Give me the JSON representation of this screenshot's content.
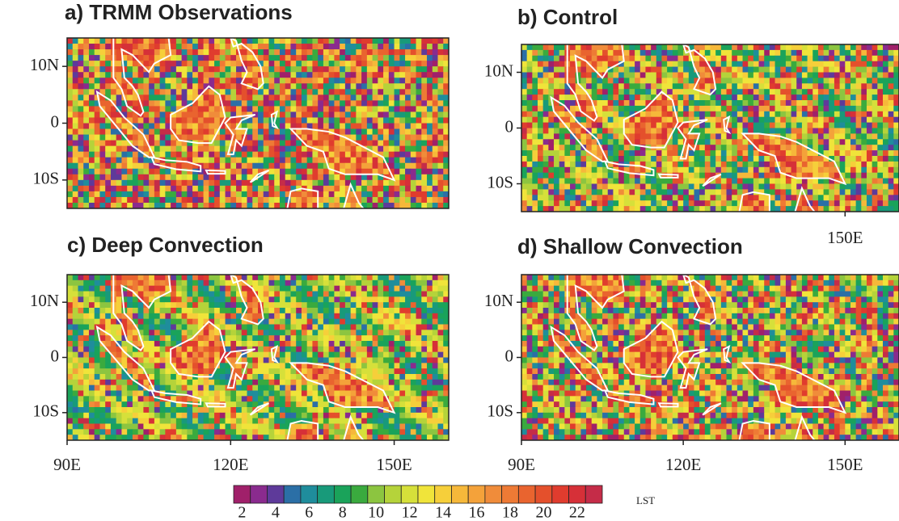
{
  "chart_data": [
    {
      "type": "map",
      "title": "a) TRMM Observations",
      "xlim": [
        90,
        160
      ],
      "ylim": [
        -15,
        15
      ],
      "xticks": [],
      "yticks": [
        {
          "value": 10,
          "label": "10N"
        },
        0,
        {
          "value": -10,
          "label": "10S"
        }
      ]
    },
    {
      "type": "map",
      "title": "b) Control",
      "xlim": [
        90,
        160
      ],
      "ylim": [
        -15,
        15
      ],
      "xticks": [
        {
          "value": 150,
          "label": "150E"
        }
      ],
      "yticks": [
        {
          "value": 10,
          "label": "10N"
        },
        0,
        {
          "value": -10,
          "label": "10S"
        }
      ]
    },
    {
      "type": "map",
      "title": "c) Deep Convection",
      "xlim": [
        90,
        160
      ],
      "ylim": [
        -15,
        15
      ],
      "xticks": [
        {
          "value": 90,
          "label": "90E"
        },
        {
          "value": 120,
          "label": "120E"
        },
        {
          "value": 150,
          "label": "150E"
        }
      ],
      "yticks": [
        {
          "value": 10,
          "label": "10N"
        },
        0,
        {
          "value": -10,
          "label": "10S"
        }
      ]
    },
    {
      "type": "map",
      "title": "d) Shallow Convection",
      "xlim": [
        90,
        160
      ],
      "ylim": [
        -15,
        15
      ],
      "xticks": [
        {
          "value": 90,
          "label": "90E"
        },
        {
          "value": 120,
          "label": "120E"
        },
        {
          "value": 150,
          "label": "150E"
        }
      ],
      "yticks": [
        {
          "value": 10,
          "label": "10N"
        },
        0,
        {
          "value": -10,
          "label": "10S"
        }
      ]
    }
  ],
  "colorbar": {
    "label": "LST",
    "lim": [
      1.5,
      23.5
    ],
    "ticks": [
      2,
      4,
      6,
      8,
      10,
      12,
      14,
      16,
      18,
      20,
      22
    ],
    "colors": [
      "#a0206a",
      "#8a2b8e",
      "#5e3a9a",
      "#2b6fa6",
      "#1f8d9c",
      "#189a7a",
      "#1aa35a",
      "#3aaa3e",
      "#8cc540",
      "#b5d33a",
      "#d6e03a",
      "#f0e43a",
      "#f6cf3a",
      "#f6b83a",
      "#f4a23a",
      "#f08c3a",
      "#ee7a35",
      "#e9642f",
      "#e4502c",
      "#e03c2e",
      "#d63038",
      "#c52c48"
    ]
  }
}
